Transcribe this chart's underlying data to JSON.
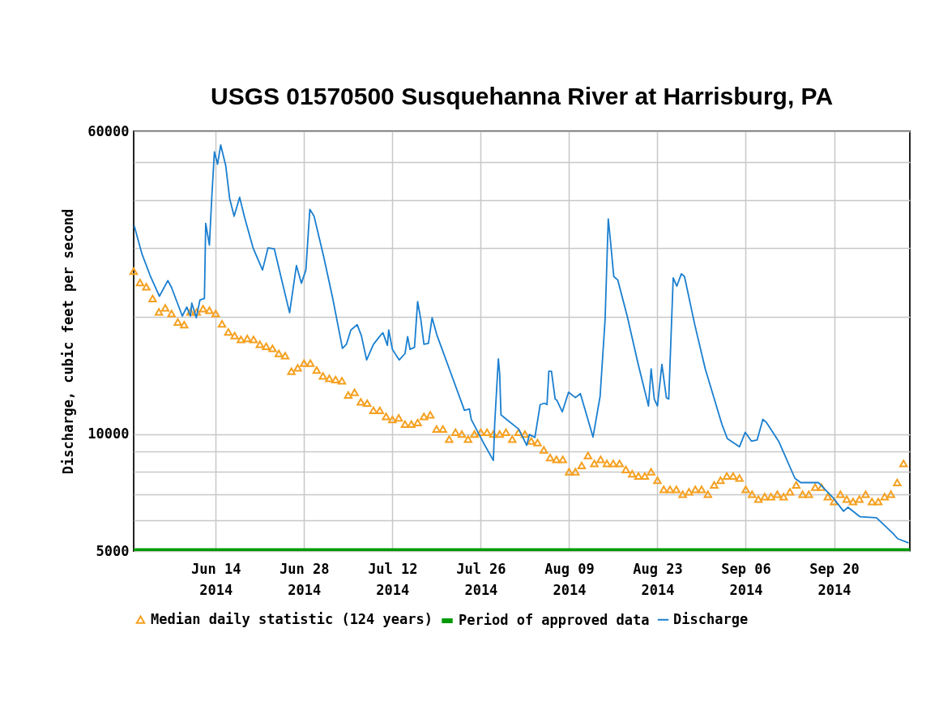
{
  "chart_data": {
    "type": "line",
    "title": "USGS 01570500 Susquehanna River at Harrisburg, PA",
    "ylabel": "Discharge, cubic feet per second",
    "log": true,
    "grid": true,
    "legend": "bottom",
    "xlim": [
      "2014-06-01",
      "2014-10-02"
    ],
    "xticks": [
      {
        "value": "2014-06-14",
        "label": "Jun 14\n2014"
      },
      {
        "value": "2014-06-28",
        "label": "Jun 28\n2014"
      },
      {
        "value": "2014-07-12",
        "label": "Jul 12\n2014"
      },
      {
        "value": "2014-07-26",
        "label": "Jul 26\n2014"
      },
      {
        "value": "2014-08-09",
        "label": "Aug 09\n2014"
      },
      {
        "value": "2014-08-23",
        "label": "Aug 23\n2014"
      },
      {
        "value": "2014-09-06",
        "label": "Sep 06\n2014"
      },
      {
        "value": "2014-09-20",
        "label": "Sep 20\n2014"
      }
    ],
    "ylim": [
      5000,
      60000
    ],
    "yticks": [
      5000,
      {
        "value": 6000,
        "label": null
      },
      {
        "value": 7000,
        "label": null
      },
      {
        "value": 8000,
        "label": null
      },
      {
        "value": 9000,
        "label": null
      },
      10000,
      {
        "value": 20000,
        "label": null
      },
      {
        "value": 30000,
        "label": null
      },
      {
        "value": 40000,
        "label": null
      },
      {
        "value": 50000,
        "label": null
      },
      60000
    ],
    "series": [
      {
        "name": "Median daily statistic (124 years)",
        "type": "scatter",
        "marker": "triangle",
        "color": "#f5a020",
        "x": [
          "2014-06-01",
          "2014-06-02",
          "2014-06-03",
          "2014-06-04",
          "2014-06-05",
          "2014-06-06",
          "2014-06-07",
          "2014-06-08",
          "2014-06-09",
          "2014-06-10",
          "2014-06-11",
          "2014-06-12",
          "2014-06-13",
          "2014-06-14",
          "2014-06-15",
          "2014-06-16",
          "2014-06-17",
          "2014-06-18",
          "2014-06-19",
          "2014-06-20",
          "2014-06-21",
          "2014-06-22",
          "2014-06-23",
          "2014-06-24",
          "2014-06-25",
          "2014-06-26",
          "2014-06-27",
          "2014-06-28",
          "2014-06-29",
          "2014-06-30",
          "2014-07-01",
          "2014-07-02",
          "2014-07-03",
          "2014-07-04",
          "2014-07-05",
          "2014-07-06",
          "2014-07-07",
          "2014-07-08",
          "2014-07-09",
          "2014-07-10",
          "2014-07-11",
          "2014-07-12",
          "2014-07-13",
          "2014-07-14",
          "2014-07-15",
          "2014-07-16",
          "2014-07-17",
          "2014-07-18",
          "2014-07-19",
          "2014-07-20",
          "2014-07-21",
          "2014-07-22",
          "2014-07-23",
          "2014-07-24",
          "2014-07-25",
          "2014-07-26",
          "2014-07-27",
          "2014-07-28",
          "2014-07-29",
          "2014-07-30",
          "2014-07-31",
          "2014-08-01",
          "2014-08-02",
          "2014-08-03",
          "2014-08-04",
          "2014-08-05",
          "2014-08-06",
          "2014-08-07",
          "2014-08-08",
          "2014-08-09",
          "2014-08-10",
          "2014-08-11",
          "2014-08-12",
          "2014-08-13",
          "2014-08-14",
          "2014-08-15",
          "2014-08-16",
          "2014-08-17",
          "2014-08-18",
          "2014-08-19",
          "2014-08-20",
          "2014-08-21",
          "2014-08-22",
          "2014-08-23",
          "2014-08-24",
          "2014-08-25",
          "2014-08-26",
          "2014-08-27",
          "2014-08-28",
          "2014-08-29",
          "2014-08-30",
          "2014-08-31",
          "2014-09-01",
          "2014-09-02",
          "2014-09-03",
          "2014-09-04",
          "2014-09-05",
          "2014-09-06",
          "2014-09-07",
          "2014-09-08",
          "2014-09-09",
          "2014-09-10",
          "2014-09-11",
          "2014-09-12",
          "2014-09-13",
          "2014-09-14",
          "2014-09-15",
          "2014-09-16",
          "2014-09-17",
          "2014-09-18",
          "2014-09-19",
          "2014-09-20",
          "2014-09-21",
          "2014-09-22",
          "2014-09-23",
          "2014-09-24",
          "2014-09-25",
          "2014-09-26",
          "2014-09-27",
          "2014-09-28",
          "2014-09-29",
          "2014-09-30",
          "2014-10-01"
        ],
        "values": [
          26200,
          24500,
          23900,
          22300,
          20600,
          21100,
          20400,
          19400,
          19100,
          20600,
          20600,
          21000,
          20800,
          20400,
          19200,
          18300,
          17900,
          17500,
          17600,
          17500,
          17000,
          16800,
          16600,
          16100,
          15900,
          14500,
          14800,
          15200,
          15200,
          14600,
          14100,
          13900,
          13800,
          13700,
          12600,
          12800,
          12100,
          12000,
          11500,
          11500,
          11100,
          10900,
          11000,
          10600,
          10600,
          10700,
          11100,
          11200,
          10300,
          10300,
          9700,
          10100,
          10000,
          9700,
          10000,
          10100,
          10100,
          10000,
          10000,
          10100,
          9700,
          10100,
          10000,
          9600,
          9500,
          9100,
          8700,
          8600,
          8600,
          8000,
          8000,
          8300,
          8800,
          8400,
          8600,
          8400,
          8400,
          8400,
          8100,
          7900,
          7800,
          7800,
          8000,
          7600,
          7200,
          7200,
          7200,
          7000,
          7100,
          7200,
          7200,
          7000,
          7400,
          7600,
          7800,
          7800,
          7700,
          7200,
          7000,
          6800,
          6900,
          6900,
          7000,
          6900,
          7100,
          7400,
          7000,
          7000,
          7300,
          7300,
          6900,
          6700,
          7000,
          6800,
          6700,
          6800,
          7000,
          6700,
          6700,
          6900,
          7000,
          7500,
          8400
        ]
      },
      {
        "name": "Period of approved data",
        "type": "line",
        "color": "#009a00",
        "x": [
          "2014-06-01",
          "2014-10-02"
        ],
        "values": [
          5000,
          5000
        ]
      },
      {
        "name": "Discharge",
        "type": "line",
        "color": "#1a7fd0",
        "x": [
          "2014-06-01T02:00",
          "2014-06-02T07:00",
          "2014-06-03T14:00",
          "2014-06-05T02:00",
          "2014-06-06T10:00",
          "2014-06-07T00:00",
          "2014-06-08T17:00",
          "2014-06-09T10:00",
          "2014-06-10T00:00",
          "2014-06-10T05:00",
          "2014-06-10T22:00",
          "2014-06-11T12:00",
          "2014-06-12T05:00",
          "2014-06-12T10:00",
          "2014-06-13T00:00",
          "2014-06-13T10:00",
          "2014-06-13T19:00",
          "2014-06-14T07:00",
          "2014-06-14T19:00",
          "2014-06-15T14:00",
          "2014-06-16T05:00",
          "2014-06-16T22:00",
          "2014-06-17T19:00",
          "2014-06-18T14:00",
          "2014-06-19T22:00",
          "2014-06-21T10:00",
          "2014-06-22T07:00",
          "2014-06-23T07:00",
          "2014-06-24T14:00",
          "2014-06-25T17:00",
          "2014-06-26T19:00",
          "2014-06-27T14:00",
          "2014-06-28T07:00",
          "2014-06-28T22:00",
          "2014-06-29T14:00",
          "2014-07-01T02:00",
          "2014-07-02T12:00",
          "2014-07-04T02:00",
          "2014-07-04T17:00",
          "2014-07-05T10:00",
          "2014-07-06T10:00",
          "2014-07-07T02:00",
          "2014-07-07T22:00",
          "2014-07-09T00:00",
          "2014-07-10T02:00",
          "2014-07-10T12:00",
          "2014-07-11T05:00",
          "2014-07-11T10:00",
          "2014-07-12T00:00",
          "2014-07-13T02:00",
          "2014-07-14T00:00",
          "2014-07-14T10:00",
          "2014-07-14T19:00",
          "2014-07-15T12:00",
          "2014-07-16T00:00",
          "2014-07-16T12:00",
          "2014-07-17T00:00",
          "2014-07-17T17:00",
          "2014-07-18T07:00",
          "2014-07-19T02:00",
          "2014-07-21T07:00",
          "2014-07-23T10:00",
          "2014-07-24T05:00",
          "2014-07-24T12:00",
          "2014-07-26T10:00",
          "2014-07-28T00:00",
          "2014-07-28T05:00",
          "2014-07-28T19:00",
          "2014-07-29T00:00",
          "2014-07-29T05:00",
          "2014-07-30T02:00",
          "2014-08-01T00:00",
          "2014-08-02T07:00",
          "2014-08-02T17:00",
          "2014-08-03T14:00",
          "2014-08-04T10:00",
          "2014-08-05T02:00",
          "2014-08-05T12:00",
          "2014-08-05T19:00",
          "2014-08-06T05:00",
          "2014-08-06T19:00",
          "2014-08-07T02:00",
          "2014-08-07T22:00",
          "2014-08-08T22:00",
          "2014-08-10T00:00",
          "2014-08-10T19:00",
          "2014-08-12T19:00",
          "2014-08-13T22:00",
          "2014-08-14T17:00",
          "2014-08-15T05:00",
          "2014-08-15T12:00",
          "2014-08-16T02:00",
          "2014-08-16T17:00",
          "2014-08-18T05:00",
          "2014-08-19T22:00",
          "2014-08-21T14:00",
          "2014-08-22T00:00",
          "2014-08-22T12:00",
          "2014-08-23T00:00",
          "2014-08-23T17:00",
          "2014-08-24T10:00",
          "2014-08-24T19:00",
          "2014-08-25T12:00",
          "2014-08-26T02:00",
          "2014-08-26T19:00",
          "2014-08-27T07:00",
          "2014-08-28T22:00",
          "2014-08-30T14:00",
          "2014-09-02T05:00",
          "2014-09-03T02:00",
          "2014-09-05T00:00",
          "2014-09-05T22:00",
          "2014-09-06T22:00",
          "2014-09-07T19:00",
          "2014-09-08T17:00",
          "2014-09-09T07:00",
          "2014-09-11T05:00",
          "2014-09-13T19:00",
          "2014-09-14T17:00",
          "2014-09-17T12:00",
          "2014-09-19T19:00",
          "2014-09-21T12:00",
          "2014-09-22T05:00",
          "2014-09-24T02:00",
          "2014-09-26T17:00",
          "2014-09-29T07:00",
          "2014-09-30T02:00",
          "2014-10-01T19:00"
        ],
        "values": [
          34300,
          29100,
          25600,
          22600,
          24800,
          23800,
          20100,
          21200,
          20100,
          21700,
          19900,
          22100,
          22300,
          34800,
          30600,
          41700,
          53100,
          49400,
          55300,
          49000,
          40300,
          36300,
          40600,
          36000,
          30100,
          26400,
          30100,
          29900,
          24400,
          20500,
          27100,
          24400,
          26400,
          37800,
          36300,
          28700,
          22500,
          16600,
          17000,
          18500,
          19100,
          17900,
          15500,
          17000,
          17900,
          18200,
          16900,
          18500,
          16500,
          15500,
          16100,
          17800,
          16500,
          16700,
          21900,
          19700,
          17000,
          17100,
          19900,
          17900,
          14300,
          11500,
          11600,
          10900,
          9500,
          8550,
          10600,
          15600,
          14300,
          11200,
          10900,
          10300,
          9350,
          9970,
          9800,
          11900,
          12000,
          11900,
          14500,
          14500,
          12300,
          12200,
          11400,
          12800,
          12400,
          12700,
          9820,
          12500,
          19700,
          35700,
          32100,
          25400,
          24900,
          20100,
          15200,
          11800,
          14700,
          12300,
          11800,
          15100,
          12400,
          12300,
          25200,
          24000,
          25800,
          25400,
          19100,
          14700,
          10600,
          9730,
          9270,
          10100,
          9580,
          9650,
          10900,
          10700,
          9580,
          7690,
          7500,
          7500,
          6870,
          6330,
          6480,
          6130,
          6090,
          5560,
          5380,
          5250
        ]
      }
    ]
  }
}
